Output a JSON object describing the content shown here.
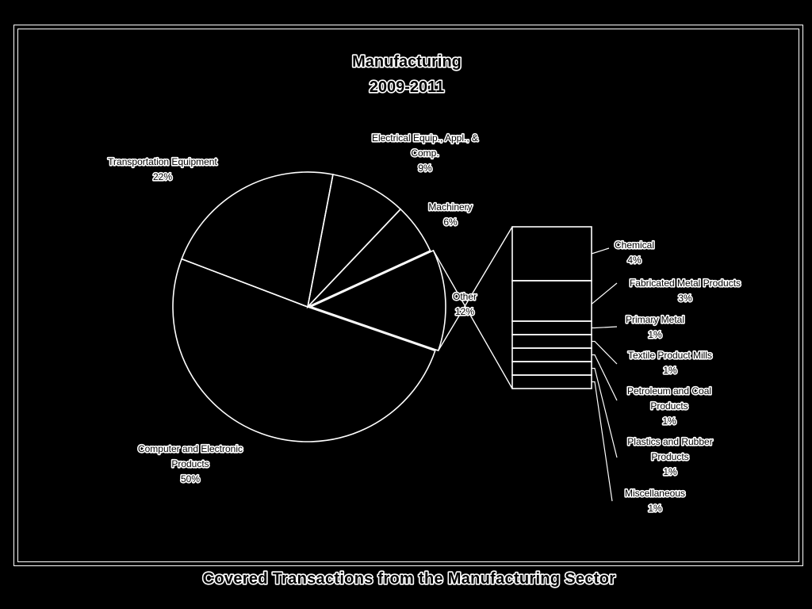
{
  "chart_data": {
    "type": "pie",
    "title": [
      "Manufacturing",
      "2009-2011"
    ],
    "slices": [
      {
        "name": "Computer and Electronic Products",
        "label_lines": [
          "Computer and Electronic",
          "Products",
          "50%"
        ],
        "value": 50
      },
      {
        "name": "Transportation Equipment",
        "label_lines": [
          "Transportation Equipment",
          "22%"
        ],
        "value": 22
      },
      {
        "name": "Electrical Equip., Appl., & Comp.",
        "label_lines": [
          "Electrical Equip., Appl., &",
          "Comp.",
          "9%"
        ],
        "value": 9
      },
      {
        "name": "Machinery",
        "label_lines": [
          "Machinery",
          "6%"
        ],
        "value": 6
      },
      {
        "name": "Other",
        "label_lines": [
          "Other",
          "12%"
        ],
        "value": 12,
        "exploded": true
      }
    ],
    "other_breakdown": [
      {
        "name": "Chemical",
        "label_lines": [
          "Chemical",
          "4%"
        ],
        "value": 4
      },
      {
        "name": "Fabricated Metal Products",
        "label_lines": [
          "Fabricated Metal Products",
          "3%"
        ],
        "value": 3
      },
      {
        "name": "Primary Metal",
        "label_lines": [
          "Primary Metal",
          "1%"
        ],
        "value": 1
      },
      {
        "name": "Textile Product Mills",
        "label_lines": [
          "Textile Product Mills",
          "1%"
        ],
        "value": 1
      },
      {
        "name": "Petroleum and Coal Products",
        "label_lines": [
          "Petroleum and Coal",
          "Products",
          "1%"
        ],
        "value": 1
      },
      {
        "name": "Plastics and Rubber Products",
        "label_lines": [
          "Plastics and Rubber",
          "Products",
          "1%"
        ],
        "value": 1
      },
      {
        "name": "Miscellaneous",
        "label_lines": [
          "Miscellaneous",
          "1%"
        ],
        "value": 1
      }
    ]
  },
  "footer": "Covered Transactions from the Manufacturing Sector",
  "colors": {
    "background": "#000000",
    "line": "#ffffff",
    "text_fill": "#000000"
  }
}
